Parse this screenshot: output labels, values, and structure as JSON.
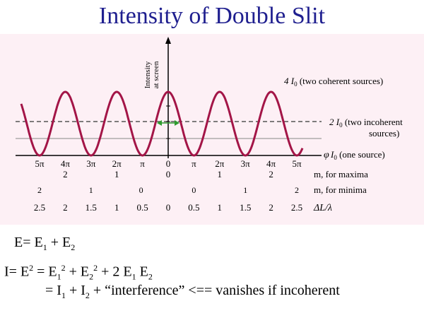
{
  "title": "Intensity of Double Slit",
  "figure": {
    "colors": {
      "panel": "#fdf0f5",
      "curve": "#a31547",
      "axis": "#000000",
      "dashed": "#555555",
      "arrow": "#2e9b2e"
    },
    "y_axis_label_line1": "Intensity",
    "y_axis_label_line2": "at screen",
    "phi_label": "φ",
    "label_4I0_main": "4 I",
    "label_4I0_sub": "0",
    "label_4I0_rest": " (two coherent sources)",
    "label_2I0_main": "2 I",
    "label_2I0_sub": "0",
    "label_2I0_rest": " (two incoherent",
    "label_2I0_line2": "sources)",
    "label_I0_main": "I",
    "label_I0_sub": "0",
    "label_I0_rest": " (one source)",
    "phase_ticks": [
      "5π",
      "4π",
      "3π",
      "2π",
      "π",
      "0",
      "π",
      "2π",
      "3π",
      "4π",
      "5π"
    ],
    "m_maxima": [
      "2",
      "1",
      "0",
      "1",
      "2"
    ],
    "m_maxima_label": "m, for maxima",
    "m_minima": [
      "2",
      "1",
      "0",
      "0",
      "1",
      "2"
    ],
    "m_minima_label": "m, for minima",
    "path_diff": [
      "2.5",
      "2",
      "1.5",
      "1",
      "0.5",
      "0",
      "0.5",
      "1",
      "1.5",
      "2",
      "2.5"
    ],
    "path_diff_label": "ΔL/λ"
  },
  "equations": {
    "line1": {
      "E": "E= E",
      "s1": "1",
      "plus": " + E",
      "s2": "2"
    },
    "line2": {
      "a": "I= E",
      "sup1": "2",
      "b": " = E",
      "sub1": "1",
      "sup2": "2",
      "c": " + E",
      "sub2": "2",
      "sup3": "2",
      "d": " + 2 E",
      "sub3": "1",
      "e": " E",
      "sub4": "2"
    },
    "line3": {
      "a": "= I",
      "s1": "1",
      "b": " + I",
      "s2": "2",
      "c": " + “interference”  <== vanishes if incoherent"
    }
  }
}
